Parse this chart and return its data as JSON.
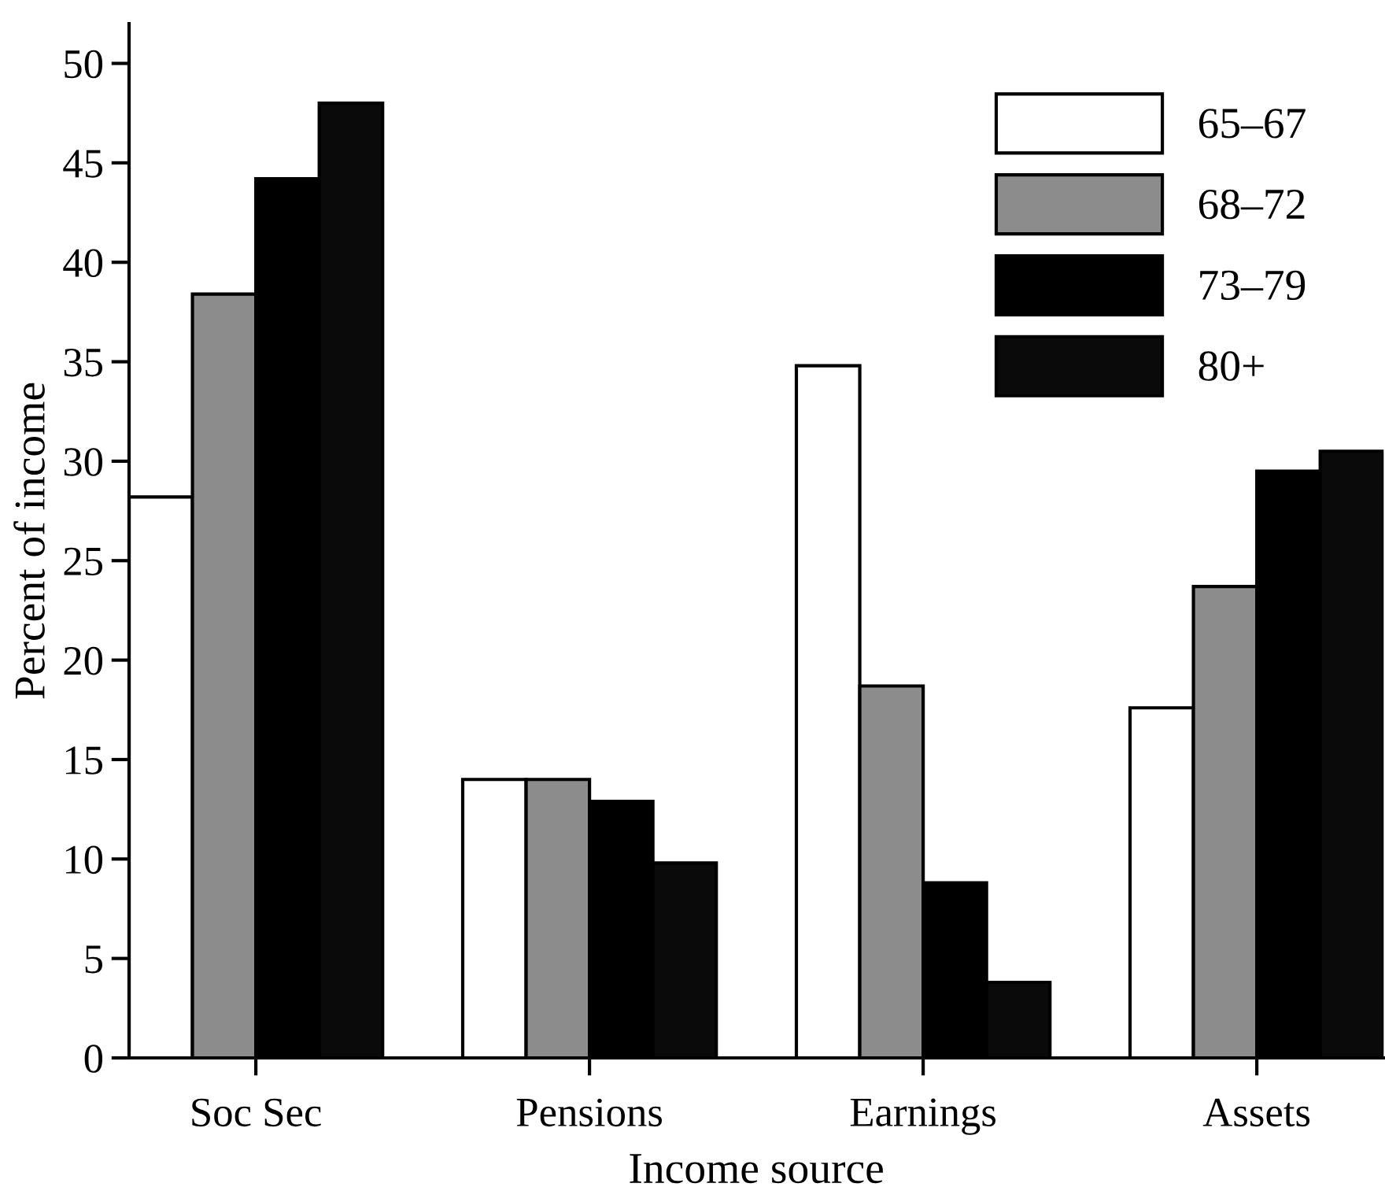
{
  "chart_data": {
    "type": "bar",
    "xlabel": "Income source",
    "ylabel": "Percent of income",
    "categories": [
      "Soc Sec",
      "Pensions",
      "Earnings",
      "Assets"
    ],
    "series": [
      {
        "name": "65–67",
        "color": "#ffffff",
        "values": [
          28.2,
          14,
          34.8,
          17.6
        ]
      },
      {
        "name": "68–72",
        "color": "#8c8c8c",
        "values": [
          38.4,
          14,
          18.7,
          23.7
        ]
      },
      {
        "name": "73–79",
        "color": "#000000",
        "values": [
          44.2,
          12.9,
          8.8,
          29.5
        ]
      },
      {
        "name": "80+",
        "color": "#0a0a0a",
        "values": [
          48.0,
          9.8,
          3.8,
          30.5
        ]
      }
    ],
    "ylim": [
      0,
      52
    ],
    "yticks": [
      0,
      5,
      10,
      15,
      20,
      25,
      30,
      35,
      40,
      45,
      50
    ],
    "grid": false,
    "legend": "top right"
  }
}
